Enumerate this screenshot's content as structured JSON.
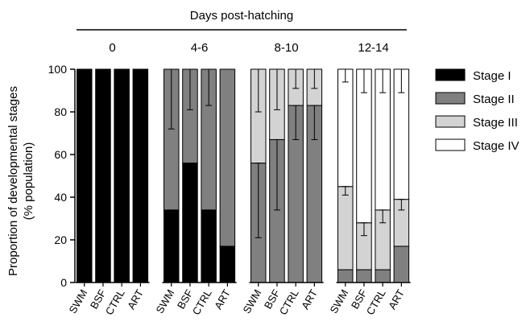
{
  "chart_data": {
    "type": "bar",
    "stacked": true,
    "header": "Days post-hatching",
    "ylabel": "Proportion of developmental stages (% population)",
    "ylabel_lines": [
      "Proportion of developmental stages",
      "(% population)"
    ],
    "ylim": [
      0,
      100
    ],
    "yticks": [
      0,
      20,
      40,
      60,
      80,
      100
    ],
    "series": [
      {
        "name": "Stage I",
        "color": "#000000"
      },
      {
        "name": "Stage II",
        "color": "#808080"
      },
      {
        "name": "Stage III",
        "color": "#d3d3d3"
      },
      {
        "name": "Stage IV",
        "color": "#ffffff"
      }
    ],
    "groups": [
      {
        "label": "0",
        "bars": [
          {
            "label": "SWM",
            "values": [
              100,
              0,
              0,
              0
            ],
            "errors": []
          },
          {
            "label": "BSF",
            "values": [
              100,
              0,
              0,
              0
            ],
            "errors": []
          },
          {
            "label": "CTRL",
            "values": [
              100,
              0,
              0,
              0
            ],
            "errors": []
          },
          {
            "label": "ART",
            "values": [
              100,
              0,
              0,
              0
            ],
            "errors": []
          }
        ]
      },
      {
        "label": "4-6",
        "bars": [
          {
            "label": "SWM",
            "values": [
              34,
              66,
              0,
              0
            ],
            "errors": [
              {
                "y": 34,
                "low": 17,
                "high": 34
              },
              {
                "y": 100,
                "low": 72,
                "high": 100
              }
            ]
          },
          {
            "label": "BSF",
            "values": [
              56,
              44,
              0,
              0
            ],
            "errors": [
              {
                "y": 56,
                "low": 45,
                "high": 56
              },
              {
                "y": 100,
                "low": 81,
                "high": 100
              }
            ]
          },
          {
            "label": "CTRL",
            "values": [
              34,
              66,
              0,
              0
            ],
            "errors": [
              {
                "y": 34,
                "low": 24,
                "high": 34
              },
              {
                "y": 100,
                "low": 83,
                "high": 100
              }
            ]
          },
          {
            "label": "ART",
            "values": [
              17,
              83,
              0,
              0
            ],
            "errors": []
          }
        ]
      },
      {
        "label": "8-10",
        "bars": [
          {
            "label": "SWM",
            "values": [
              0,
              56,
              44,
              0
            ],
            "errors": [
              {
                "y": 56,
                "low": 21,
                "high": 56
              },
              {
                "y": 100,
                "low": 80,
                "high": 100
              }
            ]
          },
          {
            "label": "BSF",
            "values": [
              0,
              67,
              33,
              0
            ],
            "errors": [
              {
                "y": 67,
                "low": 34,
                "high": 67
              },
              {
                "y": 100,
                "low": 81,
                "high": 100
              }
            ]
          },
          {
            "label": "CTRL",
            "values": [
              0,
              83,
              17,
              0
            ],
            "errors": [
              {
                "y": 83,
                "low": 67,
                "high": 83
              },
              {
                "y": 100,
                "low": 91,
                "high": 100
              }
            ]
          },
          {
            "label": "ART",
            "values": [
              0,
              83,
              17,
              0
            ],
            "errors": [
              {
                "y": 83,
                "low": 67,
                "high": 83
              },
              {
                "y": 100,
                "low": 91,
                "high": 100
              }
            ]
          }
        ]
      },
      {
        "label": "12-14",
        "bars": [
          {
            "label": "SWM",
            "values": [
              0,
              6,
              39,
              55
            ],
            "errors": [
              {
                "y": 45,
                "low": 41,
                "high": 45
              },
              {
                "y": 100,
                "low": 94,
                "high": 100
              }
            ]
          },
          {
            "label": "BSF",
            "values": [
              0,
              6,
              22,
              72
            ],
            "errors": [
              {
                "y": 28,
                "low": 22,
                "high": 28
              },
              {
                "y": 100,
                "low": 89,
                "high": 100
              }
            ]
          },
          {
            "label": "CTRL",
            "values": [
              0,
              6,
              28,
              66
            ],
            "errors": [
              {
                "y": 34,
                "low": 28,
                "high": 34
              },
              {
                "y": 100,
                "low": 89,
                "high": 100
              }
            ]
          },
          {
            "label": "ART",
            "values": [
              0,
              17,
              22,
              61
            ],
            "errors": [
              {
                "y": 39,
                "low": 34,
                "high": 39
              },
              {
                "y": 100,
                "low": 89,
                "high": 100
              }
            ]
          }
        ]
      }
    ],
    "legend_position": "right"
  }
}
